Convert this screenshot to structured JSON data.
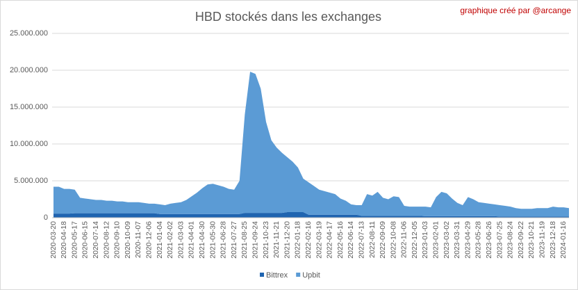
{
  "chart_data": {
    "type": "stacked-area",
    "title": "HBD stockés dans les exchanges",
    "annotation": "graphique créé par @arcange",
    "categories": [
      "2020-03-20",
      null,
      "2020-04-18",
      null,
      "2020-05-17",
      null,
      "2020-06-15",
      null,
      "2020-07-14",
      null,
      "2020-08-12",
      null,
      "2020-09-10",
      null,
      "2020-10-09",
      null,
      "2020-11-07",
      null,
      "2020-12-06",
      null,
      "2021-01-04",
      null,
      "2021-02-02",
      null,
      "2021-03-03",
      null,
      "2021-04-01",
      null,
      "2021-04-30",
      null,
      "2021-05-30",
      null,
      "2021-06-28",
      null,
      "2021-07-27",
      null,
      "2021-08-25",
      null,
      "2021-09-24",
      null,
      "2021-10-23",
      null,
      "2021-11-21",
      null,
      "2021-12-20",
      null,
      "2022-01-18",
      null,
      "2022-02-16",
      null,
      "2022-03-19",
      null,
      "2022-04-17",
      null,
      "2022-05-16",
      null,
      "2022-06-14",
      null,
      "2022-07-13",
      null,
      "2022-08-11",
      null,
      "2022-09-09",
      null,
      "2022-10-08",
      null,
      "2022-11-06",
      null,
      "2022-12-05",
      null,
      "2023-01-03",
      null,
      "2023-02-01",
      null,
      "2023-03-02",
      null,
      "2023-03-31",
      null,
      "2023-04-29",
      null,
      "2023-05-28",
      null,
      "2023-06-26",
      null,
      "2023-07-25",
      null,
      "2023-08-24",
      null,
      "2023-09-22",
      null,
      "2023-10-21",
      null,
      "2023-11-19",
      null,
      "2023-12-18",
      null,
      "2024-01-16",
      null
    ],
    "series": [
      {
        "name": "Bittrex",
        "color": "#1f64b0",
        "values": [
          550000,
          550000,
          550000,
          550000,
          600000,
          600000,
          600000,
          600000,
          600000,
          600000,
          600000,
          600000,
          600000,
          600000,
          600000,
          600000,
          600000,
          600000,
          600000,
          600000,
          500000,
          500000,
          500000,
          500000,
          500000,
          500000,
          500000,
          500000,
          500000,
          500000,
          500000,
          500000,
          500000,
          500000,
          500000,
          500000,
          650000,
          650000,
          650000,
          650000,
          650000,
          650000,
          650000,
          650000,
          750000,
          750000,
          750000,
          750000,
          400000,
          400000,
          400000,
          400000,
          400000,
          400000,
          400000,
          400000,
          400000,
          400000,
          250000,
          250000,
          250000,
          250000,
          250000,
          250000,
          250000,
          250000,
          250000,
          250000,
          250000,
          250000,
          200000,
          200000,
          200000,
          200000,
          200000,
          200000,
          200000,
          200000,
          200000,
          200000,
          200000,
          200000,
          200000,
          200000,
          150000,
          150000,
          150000,
          150000,
          150000,
          150000,
          150000,
          150000,
          150000,
          150000,
          150000,
          150000,
          150000,
          150000
        ]
      },
      {
        "name": "Upbit",
        "color": "#5b9bd5",
        "values": [
          3650000,
          3650000,
          3350000,
          3350000,
          3200000,
          2100000,
          2000000,
          1900000,
          1800000,
          1800000,
          1700000,
          1700000,
          1600000,
          1600000,
          1500000,
          1500000,
          1500000,
          1400000,
          1300000,
          1300000,
          1300000,
          1200000,
          1400000,
          1500000,
          1600000,
          1900000,
          2400000,
          2900000,
          3500000,
          4000000,
          4100000,
          3900000,
          3700000,
          3400000,
          3300000,
          4500000,
          13350000,
          19150000,
          18850000,
          16850000,
          12350000,
          9850000,
          8850000,
          8150000,
          7450000,
          6850000,
          6050000,
          4550000,
          4400000,
          3900000,
          3400000,
          3200000,
          3000000,
          2800000,
          2200000,
          1900000,
          1400000,
          1300000,
          1450000,
          2950000,
          2750000,
          3250000,
          2450000,
          2250000,
          2650000,
          2550000,
          1350000,
          1250000,
          1250000,
          1250000,
          1300000,
          1200000,
          2600000,
          3300000,
          3100000,
          2400000,
          1800000,
          1500000,
          2600000,
          2300000,
          1900000,
          1800000,
          1700000,
          1600000,
          1550000,
          1450000,
          1350000,
          1150000,
          1050000,
          1050000,
          1050000,
          1150000,
          1150000,
          1150000,
          1350000,
          1250000,
          1250000,
          1150000
        ]
      }
    ],
    "ylim": [
      0,
      25000000
    ],
    "yticks": [
      0,
      {
        "value": 5000000,
        "label": "5.000.000"
      },
      {
        "value": 10000000,
        "label": "10.000.000"
      },
      {
        "value": 15000000,
        "label": "15.000.000"
      },
      {
        "value": 20000000,
        "label": "20.000.000"
      },
      {
        "value": 25000000,
        "label": "25.000.000"
      }
    ],
    "grid": true,
    "legend": "bottom"
  }
}
